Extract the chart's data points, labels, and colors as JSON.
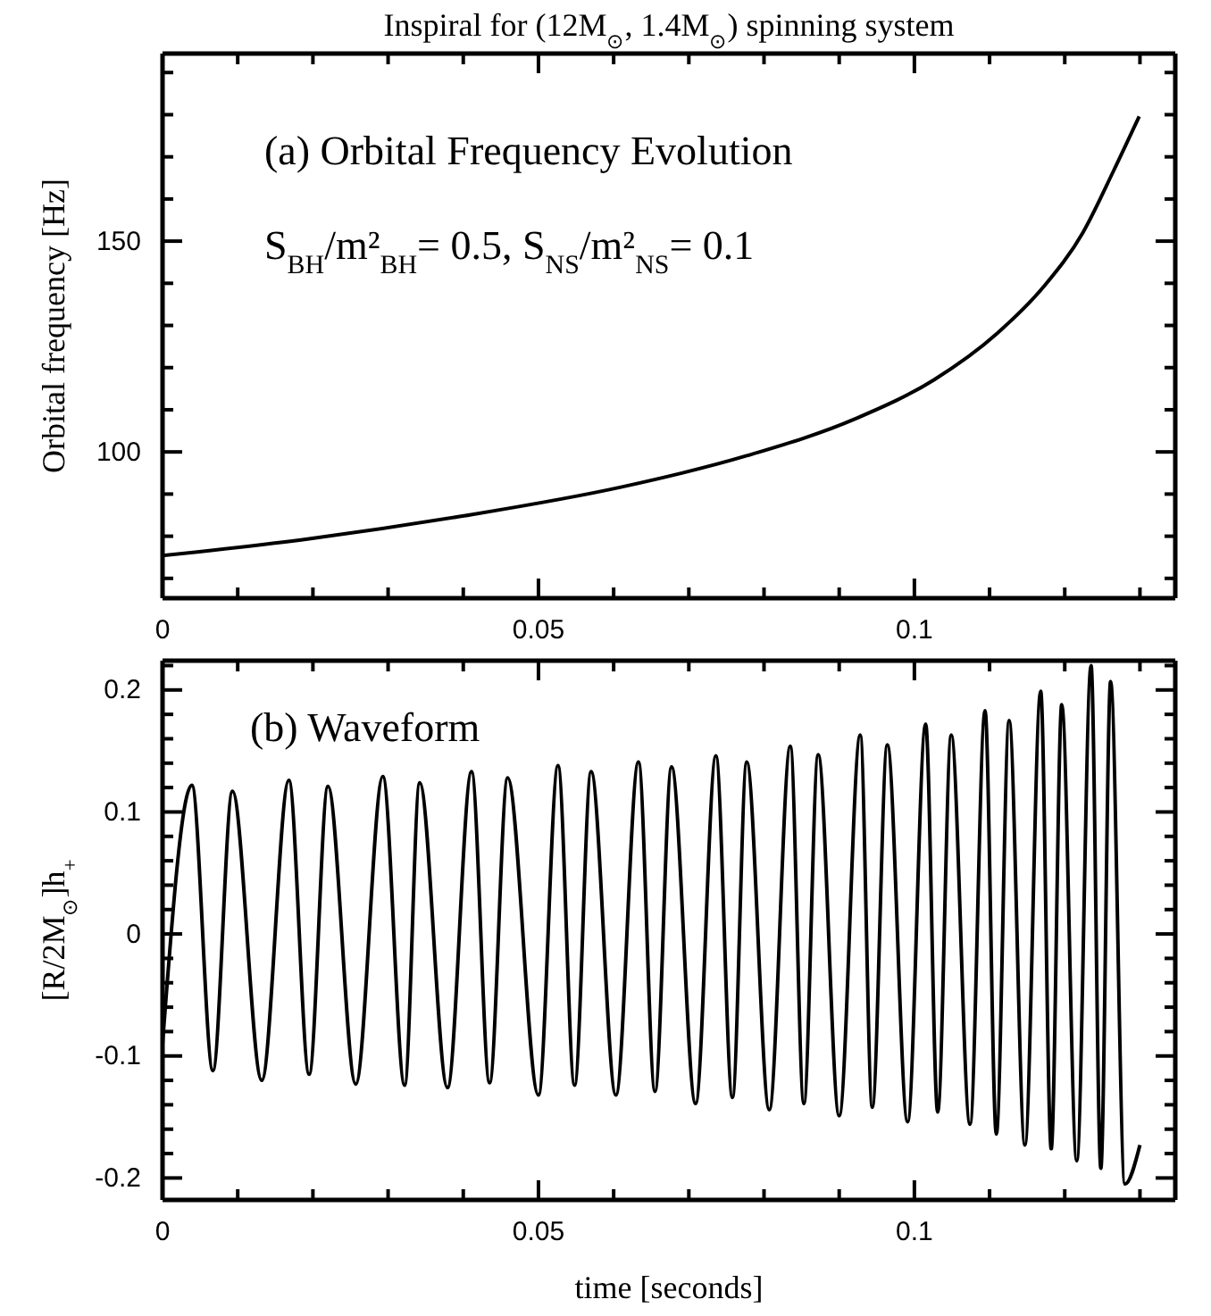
{
  "chart_data": [
    {
      "type": "line",
      "title": "Inspiral for (12M$_{⊙}$, 1.4M$_{⊙}$) spinning system",
      "ylabel": "Orbital frequency [Hz]",
      "annotations": [
        "(a) Orbital Frequency Evolution",
        "S$_{BH}$/m²$_{BH}$= 0.5,    S$_{NS}$/m²$_{NS}$= 0.1"
      ],
      "xlim": [
        0,
        0.1347
      ],
      "ylim": [
        65.3,
        194.5
      ],
      "xticks": [
        0,
        {
          "value": 0.01,
          "label": null
        },
        {
          "value": 0.02,
          "label": null
        },
        {
          "value": 0.03,
          "label": null
        },
        {
          "value": 0.04,
          "label": null
        },
        0.05,
        {
          "value": 0.06,
          "label": null
        },
        {
          "value": 0.07,
          "label": null
        },
        {
          "value": 0.08,
          "label": null
        },
        {
          "value": 0.09,
          "label": null
        },
        0.1,
        {
          "value": 0.11,
          "label": null
        },
        {
          "value": 0.12,
          "label": null
        },
        {
          "value": 0.13,
          "label": null
        }
      ],
      "yticks": [
        {
          "value": 70,
          "label": null
        },
        {
          "value": 80,
          "label": null
        },
        {
          "value": 90,
          "label": null
        },
        100,
        {
          "value": 110,
          "label": null
        },
        {
          "value": 120,
          "label": null
        },
        {
          "value": 130,
          "label": null
        },
        {
          "value": 140,
          "label": null
        },
        150,
        {
          "value": 160,
          "label": null
        },
        {
          "value": 170,
          "label": null
        },
        {
          "value": 180,
          "label": null
        },
        {
          "value": 190,
          "label": null
        }
      ],
      "series": [
        {
          "color": "#000000",
          "x": [
            0,
            0.0195,
            0.0403,
            0.0611,
            0.0777,
            0.0922,
            0.1026,
            0.111,
            0.1172,
            0.1224,
            0.1265,
            0.1299
          ],
          "values": [
            75.4,
            79.4,
            84.9,
            91.7,
            99.1,
            107.9,
            117.1,
            128.1,
            139.2,
            152.0,
            166.7,
            179.6
          ]
        }
      ]
    },
    {
      "type": "line",
      "xlabel": "time [seconds]",
      "ylabel": "[R/2M$_{⊙}$]h$_{+}$",
      "annotations": [
        "(b) Waveform"
      ],
      "xlim": [
        0,
        0.1347
      ],
      "ylim": [
        -0.218,
        0.224
      ],
      "xticks": [
        0,
        {
          "value": 0.01,
          "label": null
        },
        {
          "value": 0.02,
          "label": null
        },
        {
          "value": 0.03,
          "label": null
        },
        {
          "value": 0.04,
          "label": null
        },
        0.05,
        {
          "value": 0.06,
          "label": null
        },
        {
          "value": 0.07,
          "label": null
        },
        {
          "value": 0.08,
          "label": null
        },
        {
          "value": 0.09,
          "label": null
        },
        0.1,
        {
          "value": 0.11,
          "label": null
        },
        {
          "value": 0.12,
          "label": null
        },
        {
          "value": 0.13,
          "label": null
        }
      ],
      "yticks": [
        -0.2,
        {
          "value": -0.18,
          "label": null
        },
        {
          "value": -0.16,
          "label": null
        },
        {
          "value": -0.14,
          "label": null
        },
        {
          "value": -0.12,
          "label": null
        },
        -0.1,
        {
          "value": -0.08,
          "label": null
        },
        {
          "value": -0.06,
          "label": null
        },
        {
          "value": -0.04,
          "label": null
        },
        {
          "value": -0.02,
          "label": null
        },
        0,
        {
          "value": 0.02,
          "label": null
        },
        {
          "value": 0.04,
          "label": null
        },
        {
          "value": 0.06,
          "label": null
        },
        {
          "value": 0.08,
          "label": null
        },
        0.1,
        {
          "value": 0.12,
          "label": null
        },
        {
          "value": 0.14,
          "label": null
        },
        {
          "value": 0.16,
          "label": null
        },
        {
          "value": 0.18,
          "label": null
        },
        0.2,
        {
          "value": 0.22,
          "label": null
        }
      ],
      "series": [
        {
          "color": "#000000",
          "x": [
            0,
            0.0039,
            0.0067,
            0.0093,
            0.0132,
            0.0168,
            0.0195,
            0.022,
            0.0257,
            0.0293,
            0.0322,
            0.0342,
            0.0379,
            0.0411,
            0.0435,
            0.0459,
            0.05,
            0.0526,
            0.0548,
            0.057,
            0.0603,
            0.0633,
            0.0655,
            0.0677,
            0.0709,
            0.0736,
            0.0758,
            0.0777,
            0.0807,
            0.0835,
            0.0853,
            0.0872,
            0.09,
            0.0928,
            0.0944,
            0.0964,
            0.0991,
            0.1015,
            0.1031,
            0.1049,
            0.1074,
            0.1094,
            0.1109,
            0.1126,
            0.1147,
            0.1168,
            0.1182,
            0.1196,
            0.1216,
            0.1235,
            0.1248,
            0.1261,
            0.128,
            0.13
          ],
          "values": [
            -0.09,
            0.122,
            -0.112,
            0.117,
            -0.12,
            0.126,
            -0.115,
            0.121,
            -0.123,
            0.129,
            -0.124,
            0.124,
            -0.126,
            0.133,
            -0.122,
            0.128,
            -0.132,
            0.138,
            -0.124,
            0.133,
            -0.132,
            0.141,
            -0.129,
            0.137,
            -0.139,
            0.146,
            -0.134,
            0.141,
            -0.144,
            0.154,
            -0.139,
            0.147,
            -0.149,
            0.163,
            -0.142,
            0.155,
            -0.154,
            0.172,
            -0.146,
            0.163,
            -0.156,
            0.183,
            -0.164,
            0.175,
            -0.173,
            0.199,
            -0.176,
            0.188,
            -0.186,
            0.22,
            -0.192,
            0.207,
            -0.205,
            -0.173
          ]
        }
      ]
    }
  ]
}
